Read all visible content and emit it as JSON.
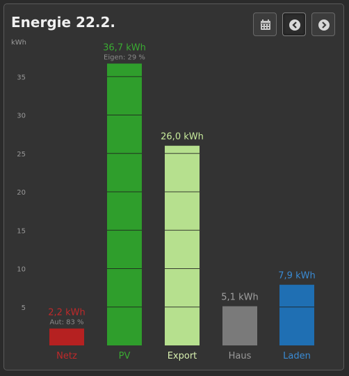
{
  "header": {
    "title": "Energie 22.2.",
    "buttons": [
      {
        "name": "calendar-button",
        "icon": "calendar-icon"
      },
      {
        "name": "previous-day-button",
        "icon": "chevron-left-icon"
      },
      {
        "name": "next-day-button",
        "icon": "chevron-right-icon"
      }
    ]
  },
  "chart_data": {
    "type": "bar",
    "ylabel": "kWh",
    "ylim": [
      0,
      38
    ],
    "yticks": [
      5,
      10,
      15,
      20,
      25,
      30,
      35
    ],
    "grid": false,
    "categories": [
      "Netz",
      "PV",
      "Export",
      "Haus",
      "Laden"
    ],
    "values": [
      2.2,
      36.7,
      26.0,
      5.1,
      7.9
    ],
    "value_labels": [
      "2,2 kWh",
      "36,7 kWh",
      "26,0 kWh",
      "5,1 kWh",
      "7,9 kWh"
    ],
    "sub_labels": [
      "Aut: 83 %",
      "Eigen: 29 %",
      "",
      "",
      ""
    ],
    "colors": [
      "#b52121",
      "#2f9e2c",
      "#b6e08e",
      "#7a7a7a",
      "#1f6fb3"
    ],
    "label_colors": [
      "#c0292a",
      "#3aaa32",
      "#c8ec9c",
      "#a0a0a0",
      "#3a8bd4"
    ],
    "tick_label_colors": [
      "#c0292a",
      "#3aaa32",
      "#d8f0b0",
      "#9a9a9a",
      "#3a8bd4"
    ]
  }
}
